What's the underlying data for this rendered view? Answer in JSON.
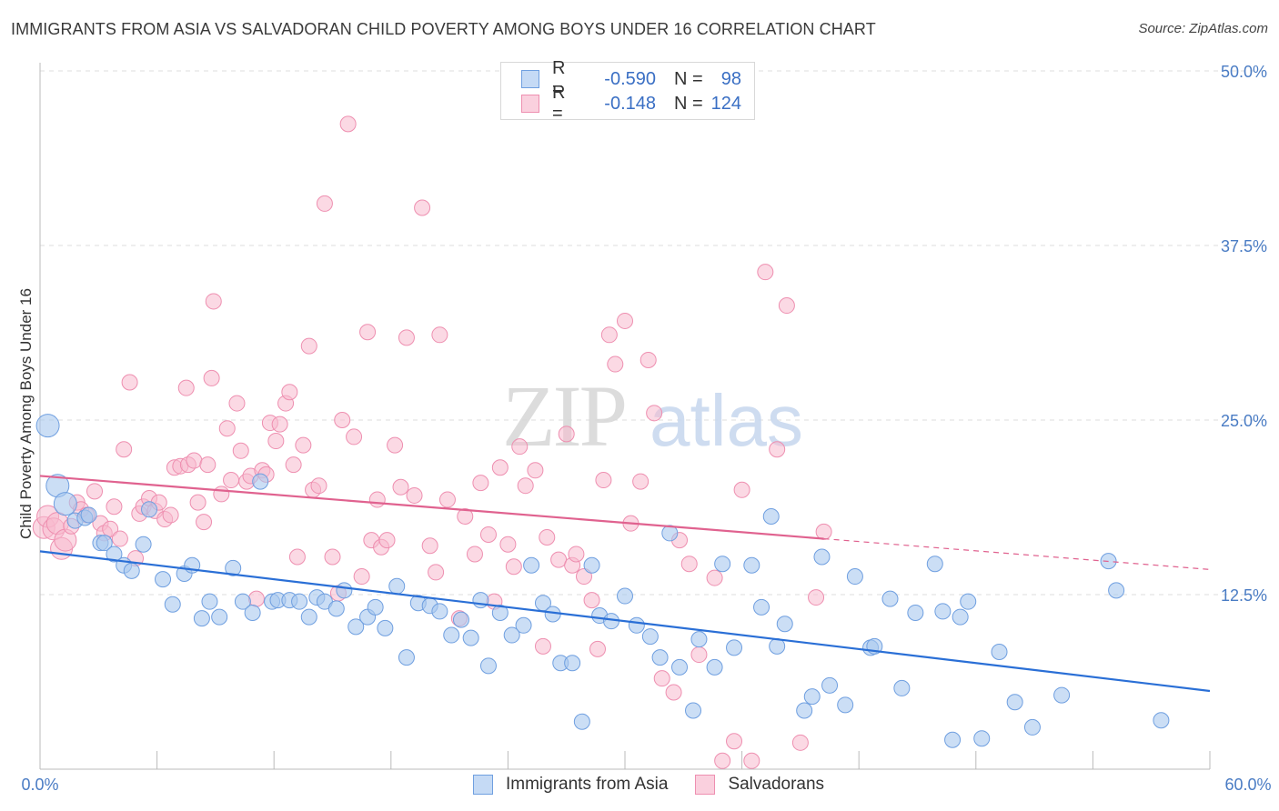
{
  "header": {
    "title": "IMMIGRANTS FROM ASIA VS SALVADORAN CHILD POVERTY AMONG BOYS UNDER 16 CORRELATION CHART",
    "source": "Source: ZipAtlas.com"
  },
  "watermark": {
    "zip": "ZIP",
    "atlas": "atlas"
  },
  "legend": {
    "rows": [
      {
        "r_label": "R =",
        "r_value": "-0.590",
        "n_label": "N =",
        "n_value": "98"
      },
      {
        "r_label": "R =",
        "r_value": "-0.148",
        "n_label": "N =",
        "n_value": "124"
      }
    ]
  },
  "bottom_legend": {
    "asia": "Immigrants from Asia",
    "salv": "Salvadorans"
  },
  "colors": {
    "asia_fill": "#a9c8ef",
    "asia_stroke": "#6f9fe0",
    "asia_line": "#2a6fd6",
    "salv_fill": "#f7b9cd",
    "salv_stroke": "#ee8fb0",
    "salv_line": "#e0628f"
  },
  "chart_data": {
    "type": "scatter",
    "title": "IMMIGRANTS FROM ASIA VS SALVADORAN CHILD POVERTY AMONG BOYS UNDER 16 CORRELATION CHART",
    "xlabel": "",
    "ylabel": "Child Poverty Among Boys Under 16",
    "xlim": [
      0,
      60
    ],
    "ylim": [
      0,
      50
    ],
    "x_tick_labels": {
      "left": "0.0%",
      "right": "60.0%"
    },
    "y_ticks": [
      {
        "value": 12.5,
        "label": "12.5%"
      },
      {
        "value": 25.0,
        "label": "25.0%"
      },
      {
        "value": 37.5,
        "label": "37.5%"
      },
      {
        "value": 50.0,
        "label": "50.0%"
      }
    ],
    "series": [
      {
        "name": "Immigrants from Asia",
        "r": -0.59,
        "n": 98,
        "trend": {
          "x0": 0,
          "y0": 15.6,
          "x1": 60,
          "y1": 5.6
        },
        "points": [
          [
            0.4,
            24.6
          ],
          [
            0.9,
            20.3
          ],
          [
            1.3,
            19.0
          ],
          [
            1.8,
            17.8
          ],
          [
            2.3,
            18.0
          ],
          [
            2.5,
            18.2
          ],
          [
            3.1,
            16.2
          ],
          [
            3.3,
            16.2
          ],
          [
            3.8,
            15.4
          ],
          [
            5.3,
            16.1
          ],
          [
            5.6,
            18.6
          ],
          [
            4.3,
            14.6
          ],
          [
            4.7,
            14.2
          ],
          [
            6.3,
            13.6
          ],
          [
            6.8,
            11.8
          ],
          [
            7.4,
            14.0
          ],
          [
            7.8,
            14.6
          ],
          [
            8.3,
            10.8
          ],
          [
            8.7,
            12.0
          ],
          [
            9.2,
            10.9
          ],
          [
            9.9,
            14.4
          ],
          [
            10.4,
            12.0
          ],
          [
            10.9,
            11.2
          ],
          [
            11.3,
            20.6
          ],
          [
            11.9,
            12.0
          ],
          [
            12.2,
            12.1
          ],
          [
            12.8,
            12.1
          ],
          [
            13.3,
            12.0
          ],
          [
            13.8,
            10.9
          ],
          [
            14.2,
            12.3
          ],
          [
            14.6,
            12.0
          ],
          [
            15.2,
            11.5
          ],
          [
            15.6,
            12.8
          ],
          [
            16.2,
            10.2
          ],
          [
            16.8,
            10.9
          ],
          [
            17.2,
            11.6
          ],
          [
            17.7,
            10.1
          ],
          [
            18.3,
            13.1
          ],
          [
            18.8,
            8.0
          ],
          [
            19.4,
            11.9
          ],
          [
            20.0,
            11.7
          ],
          [
            20.5,
            11.3
          ],
          [
            21.1,
            9.6
          ],
          [
            21.6,
            10.7
          ],
          [
            22.1,
            9.4
          ],
          [
            22.6,
            12.1
          ],
          [
            23.0,
            7.4
          ],
          [
            23.6,
            11.2
          ],
          [
            24.2,
            9.6
          ],
          [
            24.8,
            10.3
          ],
          [
            25.2,
            14.6
          ],
          [
            25.8,
            11.9
          ],
          [
            26.3,
            11.1
          ],
          [
            26.7,
            7.6
          ],
          [
            27.3,
            7.6
          ],
          [
            27.8,
            3.4
          ],
          [
            28.3,
            14.6
          ],
          [
            28.7,
            11.0
          ],
          [
            29.3,
            10.6
          ],
          [
            30.0,
            12.4
          ],
          [
            30.6,
            10.3
          ],
          [
            31.3,
            9.5
          ],
          [
            31.8,
            8.0
          ],
          [
            32.3,
            16.9
          ],
          [
            32.8,
            7.3
          ],
          [
            33.5,
            4.2
          ],
          [
            33.8,
            9.3
          ],
          [
            34.6,
            7.3
          ],
          [
            35.0,
            14.7
          ],
          [
            35.6,
            8.7
          ],
          [
            36.5,
            14.6
          ],
          [
            37.0,
            11.6
          ],
          [
            37.5,
            18.1
          ],
          [
            37.8,
            8.8
          ],
          [
            38.2,
            10.4
          ],
          [
            39.2,
            4.2
          ],
          [
            39.6,
            5.2
          ],
          [
            40.1,
            15.2
          ],
          [
            40.5,
            6.0
          ],
          [
            41.3,
            4.6
          ],
          [
            41.8,
            13.8
          ],
          [
            42.6,
            8.7
          ],
          [
            42.8,
            8.8
          ],
          [
            43.6,
            12.2
          ],
          [
            44.2,
            5.8
          ],
          [
            44.9,
            11.2
          ],
          [
            45.9,
            14.7
          ],
          [
            46.3,
            11.3
          ],
          [
            46.8,
            2.1
          ],
          [
            47.2,
            10.9
          ],
          [
            47.6,
            12.0
          ],
          [
            48.3,
            2.2
          ],
          [
            49.2,
            8.4
          ],
          [
            50.0,
            4.8
          ],
          [
            50.9,
            3.0
          ],
          [
            52.4,
            5.3
          ],
          [
            54.8,
            14.9
          ],
          [
            55.2,
            12.8
          ],
          [
            57.5,
            3.5
          ]
        ],
        "sizes_note": "three larger markers at low x"
      },
      {
        "name": "Salvadorans",
        "r": -0.148,
        "n": 124,
        "trend": {
          "x0": 0,
          "y0": 21.0,
          "x1": 40.2,
          "y1": 16.5,
          "dashed_to": {
            "x": 60,
            "y": 14.3
          }
        },
        "points": [
          [
            0.2,
            17.3
          ],
          [
            0.4,
            18.1
          ],
          [
            0.7,
            17.2
          ],
          [
            0.9,
            17.6
          ],
          [
            1.1,
            15.8
          ],
          [
            1.3,
            16.4
          ],
          [
            1.6,
            17.4
          ],
          [
            1.9,
            19.1
          ],
          [
            2.1,
            18.6
          ],
          [
            2.4,
            18.2
          ],
          [
            2.8,
            19.9
          ],
          [
            3.1,
            17.6
          ],
          [
            3.3,
            16.9
          ],
          [
            3.6,
            17.2
          ],
          [
            3.8,
            18.8
          ],
          [
            4.1,
            16.5
          ],
          [
            4.3,
            22.9
          ],
          [
            4.6,
            27.7
          ],
          [
            4.9,
            15.1
          ],
          [
            5.1,
            18.3
          ],
          [
            5.3,
            18.8
          ],
          [
            5.6,
            19.4
          ],
          [
            5.9,
            18.5
          ],
          [
            6.1,
            19.1
          ],
          [
            6.4,
            17.9
          ],
          [
            6.7,
            18.2
          ],
          [
            6.9,
            21.6
          ],
          [
            7.2,
            21.7
          ],
          [
            7.5,
            27.3
          ],
          [
            7.6,
            21.8
          ],
          [
            7.9,
            22.1
          ],
          [
            8.1,
            19.1
          ],
          [
            8.4,
            17.7
          ],
          [
            8.6,
            21.8
          ],
          [
            8.9,
            33.5
          ],
          [
            8.8,
            28.0
          ],
          [
            9.3,
            19.7
          ],
          [
            9.6,
            24.4
          ],
          [
            9.8,
            20.7
          ],
          [
            10.1,
            26.2
          ],
          [
            10.3,
            22.8
          ],
          [
            10.6,
            20.6
          ],
          [
            10.8,
            21.0
          ],
          [
            11.1,
            12.2
          ],
          [
            11.4,
            21.4
          ],
          [
            11.6,
            21.1
          ],
          [
            11.8,
            24.8
          ],
          [
            12.1,
            23.5
          ],
          [
            12.3,
            24.7
          ],
          [
            12.6,
            26.2
          ],
          [
            12.8,
            27.0
          ],
          [
            13.0,
            21.8
          ],
          [
            13.2,
            15.2
          ],
          [
            13.5,
            23.2
          ],
          [
            13.8,
            30.3
          ],
          [
            14.0,
            20.0
          ],
          [
            14.3,
            20.3
          ],
          [
            14.6,
            40.5
          ],
          [
            15.0,
            15.2
          ],
          [
            15.3,
            12.6
          ],
          [
            15.5,
            25.0
          ],
          [
            15.8,
            46.2
          ],
          [
            16.1,
            23.8
          ],
          [
            16.5,
            13.8
          ],
          [
            16.8,
            31.3
          ],
          [
            17.0,
            16.4
          ],
          [
            17.3,
            19.3
          ],
          [
            17.5,
            15.9
          ],
          [
            17.8,
            16.4
          ],
          [
            18.2,
            23.2
          ],
          [
            18.5,
            20.2
          ],
          [
            18.8,
            30.9
          ],
          [
            19.2,
            19.6
          ],
          [
            19.6,
            40.2
          ],
          [
            20.0,
            16.0
          ],
          [
            20.3,
            14.1
          ],
          [
            20.5,
            31.1
          ],
          [
            20.9,
            19.3
          ],
          [
            21.5,
            10.8
          ],
          [
            21.8,
            18.1
          ],
          [
            22.3,
            15.4
          ],
          [
            22.6,
            20.5
          ],
          [
            23.0,
            16.8
          ],
          [
            23.3,
            12.0
          ],
          [
            23.6,
            21.6
          ],
          [
            24.0,
            16.1
          ],
          [
            24.3,
            14.5
          ],
          [
            24.6,
            23.1
          ],
          [
            24.9,
            20.3
          ],
          [
            25.4,
            21.4
          ],
          [
            25.8,
            8.8
          ],
          [
            26.0,
            16.6
          ],
          [
            26.6,
            15.0
          ],
          [
            27.0,
            24.0
          ],
          [
            27.3,
            14.6
          ],
          [
            27.5,
            15.4
          ],
          [
            27.9,
            13.8
          ],
          [
            28.3,
            12.1
          ],
          [
            28.6,
            8.6
          ],
          [
            28.9,
            20.7
          ],
          [
            29.2,
            31.1
          ],
          [
            29.5,
            29.0
          ],
          [
            30.0,
            32.1
          ],
          [
            30.3,
            17.6
          ],
          [
            30.8,
            20.6
          ],
          [
            31.2,
            29.3
          ],
          [
            31.5,
            25.5
          ],
          [
            31.9,
            6.5
          ],
          [
            32.5,
            5.5
          ],
          [
            32.8,
            16.4
          ],
          [
            33.3,
            14.7
          ],
          [
            33.8,
            8.2
          ],
          [
            34.6,
            13.7
          ],
          [
            35.0,
            0.6
          ],
          [
            35.6,
            2.0
          ],
          [
            36.0,
            20.0
          ],
          [
            36.5,
            0.6
          ],
          [
            37.2,
            35.6
          ],
          [
            37.8,
            22.9
          ],
          [
            38.3,
            33.2
          ],
          [
            39.0,
            1.9
          ],
          [
            39.8,
            12.3
          ],
          [
            40.2,
            17.0
          ]
        ]
      }
    ]
  }
}
